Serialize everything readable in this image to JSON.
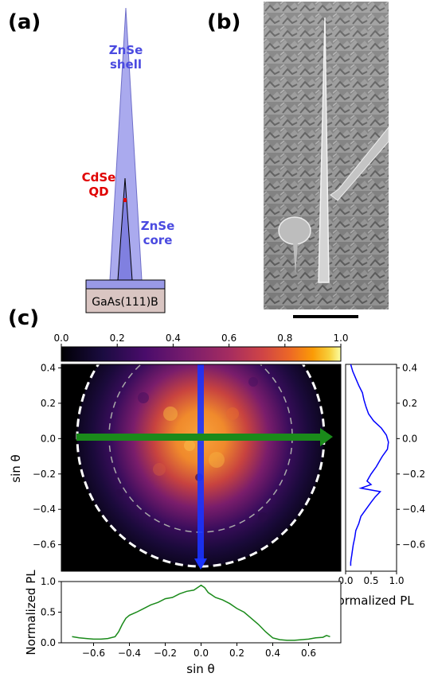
{
  "panels": {
    "a": {
      "label": "(a)",
      "shell_label_line1": "ZnSe",
      "shell_label_line2": "shell",
      "qd_label_line1": "CdSe",
      "qd_label_line2": "QD",
      "core_label_line1": "ZnSe",
      "core_label_line2": "core",
      "substrate_label": "GaAs(111)B",
      "colors": {
        "shell": "#aaaaee",
        "core": "#7777dd",
        "qd": "#e00000",
        "substrate": "#d9c5c2",
        "base": "#9999e6"
      }
    },
    "b": {
      "label": "(b)",
      "description_icon": "sem-nanowire-image"
    },
    "c": {
      "label": "(c)"
    }
  },
  "chart_data": [
    {
      "type": "heatmap",
      "id": "emission-map",
      "colormap": "inferno",
      "colorbar": {
        "ticks": [
          "0.0",
          "0.2",
          "0.4",
          "0.6",
          "0.8",
          "1.0"
        ],
        "range": [
          0,
          1
        ]
      },
      "xlim": [
        -0.75,
        0.75
      ],
      "ylim": [
        -0.75,
        0.42
      ],
      "ylabel": "sin θ",
      "yticks": [
        "0.4",
        "0.2",
        "0.0",
        "−0.2",
        "−0.4",
        "−0.6"
      ],
      "circles": [
        {
          "radius": 0.75,
          "color": "#ffffff",
          "style": "dashed"
        },
        {
          "radius": 0.55,
          "color": "#aaaaaa",
          "style": "dashed"
        }
      ],
      "arrows": [
        {
          "direction": "horizontal",
          "color": "#1a8a1a",
          "at_y": 0.0
        },
        {
          "direction": "vertical",
          "color": "#1a33ff",
          "at_x": 0.0
        }
      ]
    },
    {
      "type": "line",
      "id": "vertical-cut",
      "orientation": "vertical",
      "color": "#0000ff",
      "xlim": [
        0.0,
        1.0
      ],
      "ylim": [
        -0.75,
        0.42
      ],
      "xticks": [
        "0.0",
        "0.5",
        "1.0"
      ],
      "yticks": [
        "0.4",
        "0.2",
        "0.0",
        "−0.2",
        "−0.4",
        "−0.6"
      ],
      "xlabel": "Normalized PL",
      "x": [
        0.1,
        0.14,
        0.2,
        0.26,
        0.33,
        0.36,
        0.4,
        0.45,
        0.55,
        0.7,
        0.8,
        0.84,
        0.82,
        0.72,
        0.68,
        0.64,
        0.6,
        0.55,
        0.5,
        0.46,
        0.42,
        0.5,
        0.3,
        0.68,
        0.58,
        0.5,
        0.4,
        0.3,
        0.26,
        0.2,
        0.18,
        0.15,
        0.13,
        0.12,
        0.11,
        0.1,
        0.1
      ],
      "y": [
        0.42,
        0.38,
        0.34,
        0.3,
        0.26,
        0.22,
        0.18,
        0.14,
        0.1,
        0.06,
        0.02,
        -0.02,
        -0.06,
        -0.1,
        -0.12,
        -0.14,
        -0.16,
        -0.18,
        -0.2,
        -0.22,
        -0.24,
        -0.26,
        -0.28,
        -0.3,
        -0.33,
        -0.36,
        -0.4,
        -0.44,
        -0.48,
        -0.52,
        -0.56,
        -0.6,
        -0.64,
        -0.66,
        -0.68,
        -0.7,
        -0.72
      ]
    },
    {
      "type": "line",
      "id": "horizontal-cut",
      "color": "#1a8a1a",
      "xlim": [
        -0.78,
        0.78
      ],
      "ylim": [
        0.0,
        1.0
      ],
      "xlabel": "sin θ",
      "ylabel": "Normalized PL",
      "xticks": [
        "−0.6",
        "−0.4",
        "−0.2",
        "0.0",
        "0.2",
        "0.4",
        "0.6"
      ],
      "yticks": [
        "0.0",
        "0.5",
        "1.0"
      ],
      "x": [
        -0.72,
        -0.68,
        -0.64,
        -0.6,
        -0.56,
        -0.52,
        -0.48,
        -0.46,
        -0.44,
        -0.42,
        -0.4,
        -0.36,
        -0.32,
        -0.28,
        -0.24,
        -0.2,
        -0.16,
        -0.12,
        -0.08,
        -0.04,
        0.0,
        0.02,
        0.04,
        0.06,
        0.08,
        0.12,
        0.16,
        0.2,
        0.24,
        0.28,
        0.32,
        0.36,
        0.4,
        0.44,
        0.48,
        0.52,
        0.56,
        0.6,
        0.64,
        0.68,
        0.7,
        0.72
      ],
      "y": [
        0.1,
        0.08,
        0.07,
        0.06,
        0.06,
        0.07,
        0.1,
        0.18,
        0.3,
        0.4,
        0.45,
        0.5,
        0.56,
        0.62,
        0.66,
        0.72,
        0.74,
        0.8,
        0.84,
        0.86,
        0.94,
        0.9,
        0.82,
        0.78,
        0.74,
        0.7,
        0.64,
        0.56,
        0.5,
        0.4,
        0.3,
        0.18,
        0.08,
        0.05,
        0.04,
        0.04,
        0.05,
        0.06,
        0.08,
        0.09,
        0.12,
        0.1
      ]
    }
  ]
}
